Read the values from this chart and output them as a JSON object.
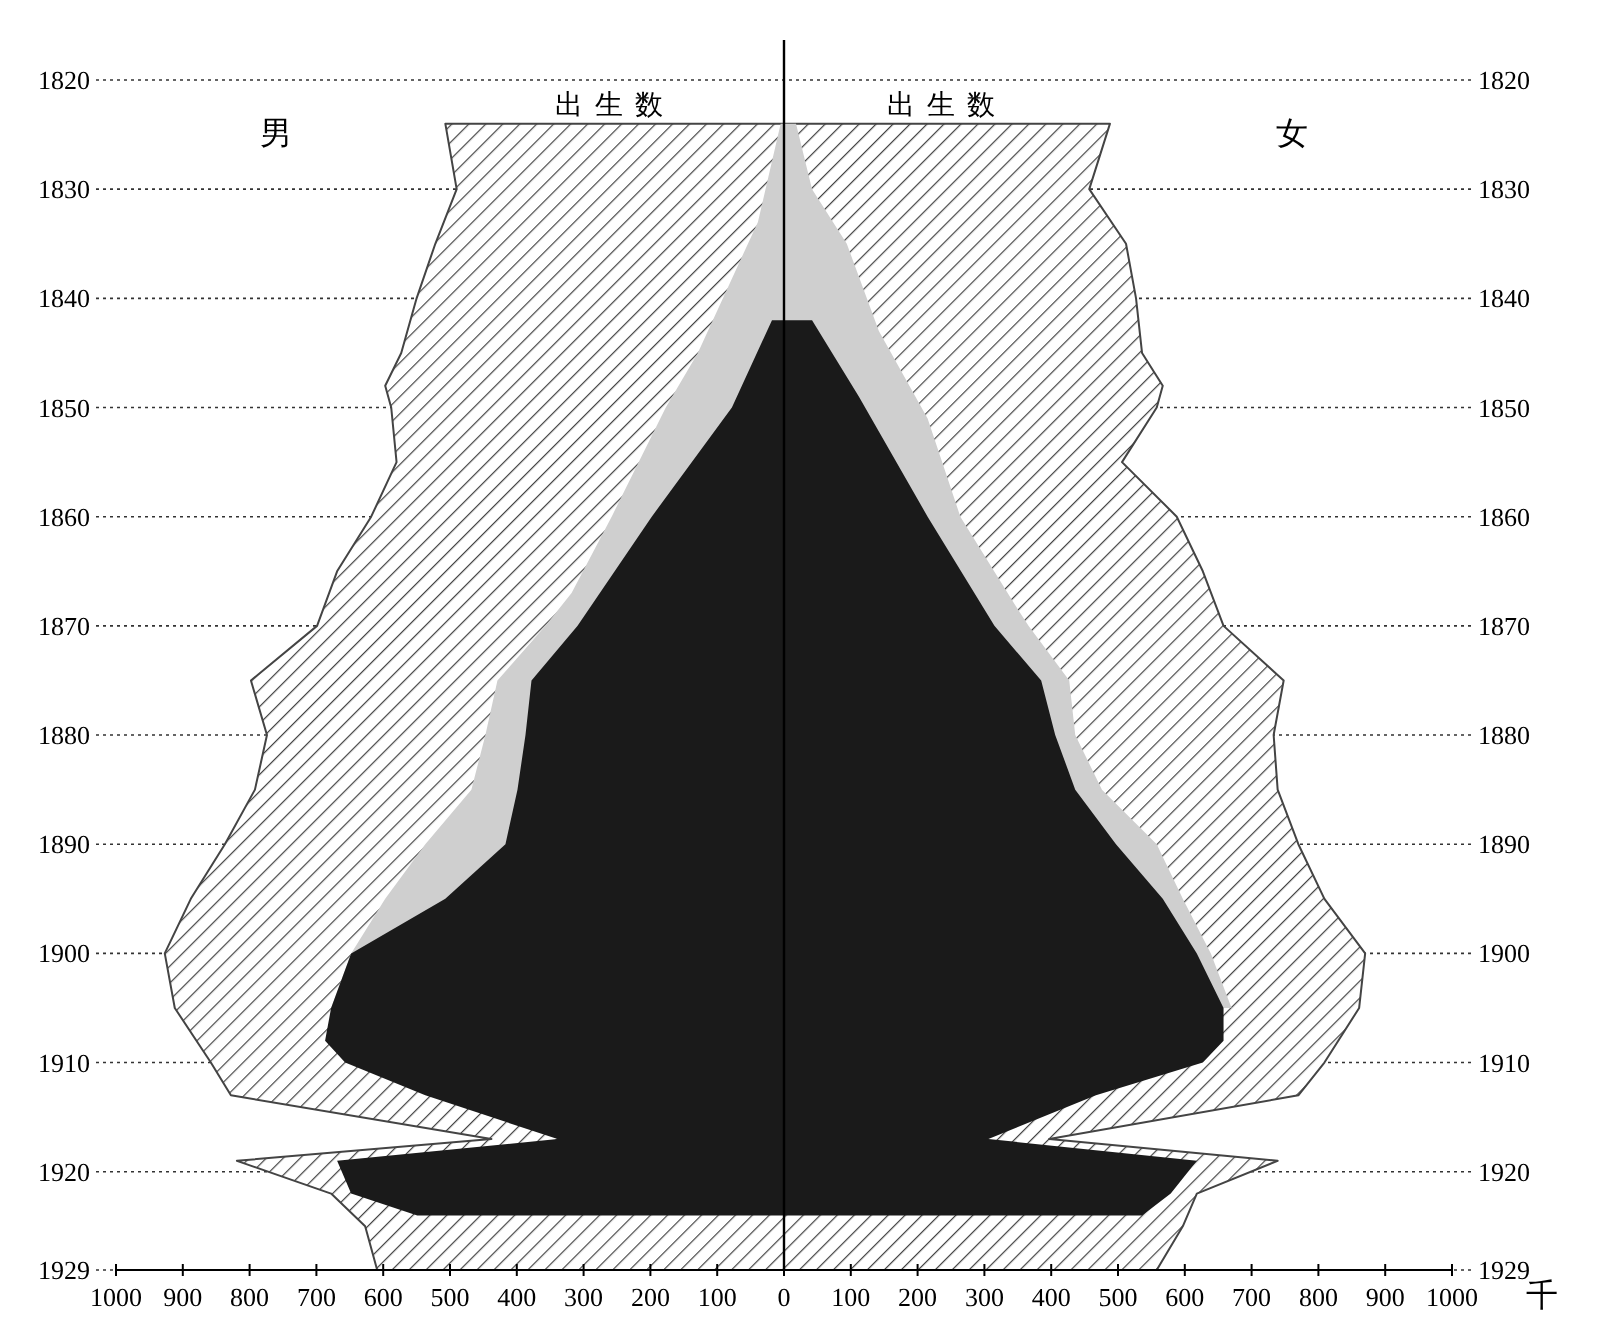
{
  "chart_data": {
    "type": "area",
    "orientation": "horizontal",
    "grid": "y",
    "xlim": [
      -1000,
      1000
    ],
    "xticks": [
      {
        "value": -1000,
        "label": "1000"
      },
      {
        "value": -900,
        "label": "900"
      },
      {
        "value": -800,
        "label": "800"
      },
      {
        "value": -700,
        "label": "700"
      },
      {
        "value": -600,
        "label": "600"
      },
      {
        "value": -500,
        "label": "500"
      },
      {
        "value": -400,
        "label": "400"
      },
      {
        "value": -300,
        "label": "300"
      },
      {
        "value": -200,
        "label": "200"
      },
      {
        "value": -100,
        "label": "100"
      },
      0,
      100,
      200,
      300,
      400,
      500,
      600,
      700,
      800,
      900,
      1000
    ],
    "ylim": [
      1929,
      1820
    ],
    "yticks": [
      1820,
      1830,
      1840,
      1850,
      1860,
      1870,
      1880,
      1890,
      1900,
      1910,
      1920,
      1929
    ],
    "y2lim": [
      1929,
      1820
    ],
    "y2ticks": [
      1820,
      1830,
      1840,
      1850,
      1860,
      1870,
      1880,
      1890,
      1900,
      1910,
      1920,
      1929
    ],
    "ref_lines": [
      {
        "axis": "x",
        "value": 0
      }
    ],
    "annotations": [
      "男",
      "女",
      "千"
    ],
    "series": [
      {
        "name": "出生数",
        "color": "#444444",
        "x": [
          1824,
          1830,
          1835,
          1840,
          1845,
          1848,
          1850,
          1855,
          1860,
          1865,
          1870,
          1875,
          1880,
          1885,
          1890,
          1895,
          1900,
          1905,
          1910,
          1913,
          1917,
          1919,
          1922,
          1925,
          1929
        ],
        "values": [
          -507,
          -490,
          -522,
          -550,
          -573,
          -597,
          -588,
          -580,
          -618,
          -669,
          -699,
          -798,
          -774,
          -792,
          -837,
          -888,
          -927,
          -912,
          -858,
          -828,
          -438,
          -819,
          -678,
          -627,
          -609
        ]
      },
      {
        "name": "出生数",
        "color": "#444444",
        "x": [
          1824,
          1830,
          1835,
          1840,
          1845,
          1848,
          1850,
          1855,
          1860,
          1865,
          1870,
          1875,
          1880,
          1885,
          1890,
          1895,
          1900,
          1905,
          1910,
          1913,
          1917,
          1919,
          1922,
          1925,
          1929
        ],
        "values": [
          488,
          457,
          512,
          527,
          536,
          567,
          558,
          506,
          588,
          627,
          658,
          748,
          733,
          739,
          770,
          809,
          870,
          861,
          809,
          770,
          397,
          739,
          618,
          597,
          558
        ]
      },
      {
        "color": "#cfcfcf",
        "x": [
          1824,
          1833,
          1845,
          1850,
          1860,
          1867,
          1870,
          1875,
          1880,
          1885,
          1890,
          1895,
          1900,
          1905
        ],
        "values": [
          -5,
          -39,
          -129,
          -177,
          -258,
          -318,
          -357,
          -429,
          -447,
          -468,
          -537,
          -597,
          -648,
          -678
        ]
      },
      {
        "color": "#cfcfcf",
        "x": [
          1824,
          1830,
          1835,
          1843,
          1851,
          1860,
          1868,
          1870,
          1875,
          1880,
          1885,
          1890,
          1895,
          1900,
          1905
        ],
        "values": [
          18,
          42,
          94,
          142,
          215,
          264,
          345,
          366,
          427,
          436,
          476,
          558,
          597,
          639,
          670
        ]
      },
      {
        "color": "#1a1a1a",
        "x": [
          1842,
          1850,
          1860,
          1870,
          1875,
          1880,
          1885,
          1890,
          1895,
          1900,
          1905,
          1908,
          1910,
          1913,
          1917,
          1919,
          1922,
          1924
        ],
        "values": [
          -18,
          -78,
          -198,
          -309,
          -378,
          -387,
          -399,
          -417,
          -507,
          -648,
          -678,
          -687,
          -657,
          -537,
          -339,
          -669,
          -648,
          -549
        ]
      },
      {
        "color": "#1a1a1a",
        "x": [
          1842,
          1849,
          1860,
          1870,
          1875,
          1880,
          1885,
          1890,
          1895,
          1900,
          1905,
          1908,
          1910,
          1913,
          1917,
          1919,
          1922,
          1924
        ],
        "values": [
          42,
          112,
          215,
          315,
          385,
          406,
          436,
          497,
          567,
          618,
          658,
          658,
          627,
          467,
          306,
          618,
          579,
          536
        ]
      }
    ]
  }
}
